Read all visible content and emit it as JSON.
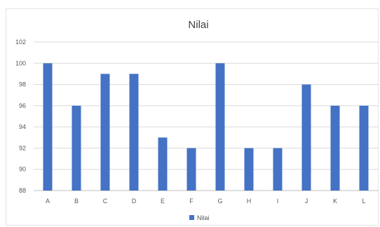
{
  "chart_data": {
    "type": "bar",
    "title": "Nilai",
    "xlabel": "",
    "ylabel": "",
    "categories": [
      "A",
      "B",
      "C",
      "D",
      "E",
      "F",
      "G",
      "H",
      "I",
      "J",
      "K",
      "L"
    ],
    "series": [
      {
        "name": "Nilai",
        "values": [
          100,
          96,
          99,
          99,
          93,
          92,
          100,
          92,
          92,
          98,
          96,
          96
        ],
        "color": "#4472c4"
      }
    ],
    "ylim": [
      88,
      102
    ],
    "yticks": [
      88,
      90,
      92,
      94,
      96,
      98,
      100,
      102
    ],
    "grid": true,
    "legend_position": "bottom"
  }
}
